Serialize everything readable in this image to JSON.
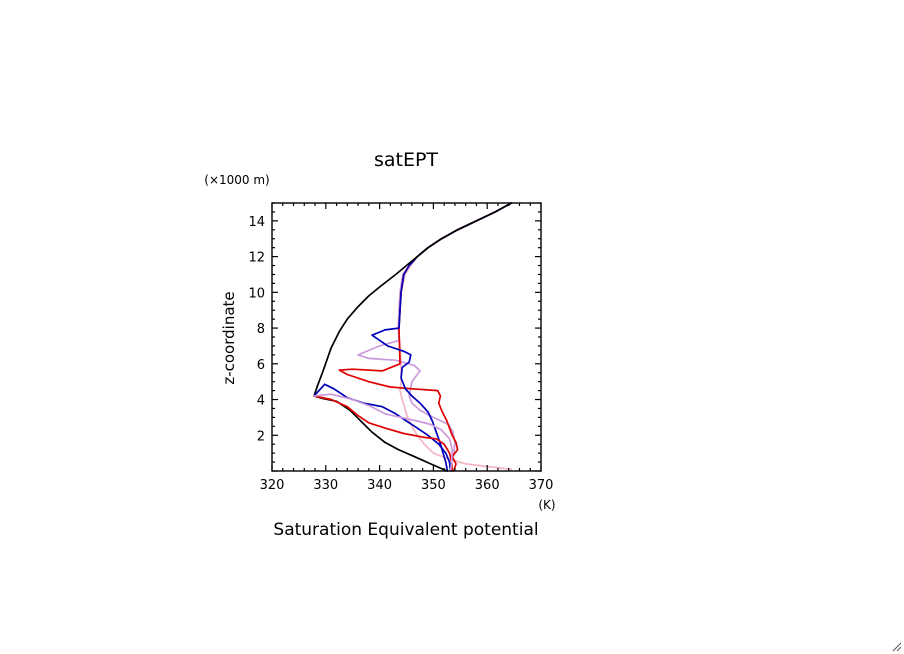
{
  "chart_data": {
    "type": "line",
    "title": "satEPT",
    "y_unit": "(×1000 m)",
    "ylabel": "z-coordinate",
    "x_unit": "(K)",
    "xlabel": "Saturation Equivalent potential",
    "xlim": [
      320,
      370
    ],
    "ylim": [
      0,
      15
    ],
    "xticks": [
      320,
      330,
      340,
      350,
      360,
      370
    ],
    "yticks": [
      2,
      4,
      6,
      8,
      10,
      12,
      14
    ],
    "grid": false,
    "series": [
      {
        "color": "#f4b6c2",
        "points": [
          [
            364.5,
            15
          ],
          [
            361.5,
            14.5
          ],
          [
            358,
            14
          ],
          [
            354.5,
            13.5
          ],
          [
            351.5,
            13
          ],
          [
            349,
            12.5
          ],
          [
            347,
            12
          ],
          [
            345.8,
            11.5
          ],
          [
            344.7,
            11
          ],
          [
            344,
            10
          ],
          [
            343.6,
            9
          ],
          [
            343.5,
            8
          ],
          [
            343.8,
            7
          ],
          [
            344,
            6
          ],
          [
            344,
            5
          ],
          [
            343.8,
            4.5
          ],
          [
            344.2,
            4
          ],
          [
            344.7,
            3.5
          ],
          [
            345.2,
            3
          ],
          [
            346,
            2.5
          ],
          [
            347,
            2
          ],
          [
            348.3,
            1.5
          ],
          [
            350,
            1
          ],
          [
            352.5,
            0.7
          ],
          [
            356,
            0.4
          ],
          [
            360,
            0.25
          ],
          [
            364.5,
            0.1
          ]
        ]
      },
      {
        "color": "#cc99dd",
        "points": [
          [
            364.5,
            15
          ],
          [
            361.5,
            14.5
          ],
          [
            358,
            14
          ],
          [
            354.5,
            13.5
          ],
          [
            351.5,
            13
          ],
          [
            349,
            12.5
          ],
          [
            347,
            12
          ],
          [
            345.5,
            11.5
          ],
          [
            344.3,
            11
          ],
          [
            343.8,
            10
          ],
          [
            343.6,
            9
          ],
          [
            343.5,
            8
          ],
          [
            343.6,
            7.3
          ],
          [
            340,
            7
          ],
          [
            336,
            6.5
          ],
          [
            338,
            6.3
          ],
          [
            343,
            6.2
          ],
          [
            346.5,
            5.9
          ],
          [
            347.5,
            5.6
          ],
          [
            346,
            5
          ],
          [
            345.5,
            4.2
          ],
          [
            346,
            3.8
          ],
          [
            347.5,
            3.4
          ],
          [
            350,
            3
          ],
          [
            352.8,
            2.6
          ],
          [
            353.6,
            2.2
          ],
          [
            354,
            1.6
          ],
          [
            353.8,
            1
          ],
          [
            353.4,
            0.5
          ],
          [
            353.2,
            0
          ]
        ]
      },
      {
        "color": "#e00000",
        "points": [
          [
            364.5,
            15
          ],
          [
            361.5,
            14.5
          ],
          [
            358,
            14
          ],
          [
            354.5,
            13.5
          ],
          [
            351.5,
            13
          ],
          [
            349,
            12.5
          ],
          [
            347,
            12
          ],
          [
            345.5,
            11.5
          ],
          [
            344.5,
            11
          ],
          [
            344,
            10
          ],
          [
            343.8,
            9
          ],
          [
            343.6,
            8
          ],
          [
            343.7,
            7
          ],
          [
            343.8,
            6
          ],
          [
            340.5,
            5.6
          ],
          [
            335,
            5.7
          ],
          [
            332.5,
            5.65
          ],
          [
            334,
            5.4
          ],
          [
            338,
            5
          ],
          [
            342,
            4.7
          ],
          [
            346,
            4.6
          ],
          [
            350.8,
            4.5
          ],
          [
            351.3,
            4.2
          ],
          [
            351,
            3.8
          ],
          [
            351.5,
            3.4
          ],
          [
            352.5,
            2.8
          ],
          [
            353,
            2.4
          ],
          [
            353.5,
            2
          ],
          [
            354.2,
            1.6
          ],
          [
            354.5,
            1.2
          ],
          [
            353.5,
            0.8
          ],
          [
            354.2,
            0.4
          ],
          [
            353.8,
            0
          ]
        ]
      },
      {
        "color": "#0000bb",
        "points": [
          [
            364.5,
            15
          ],
          [
            361.5,
            14.5
          ],
          [
            358,
            14
          ],
          [
            354.5,
            13.5
          ],
          [
            351.5,
            13
          ],
          [
            349,
            12.5
          ],
          [
            347,
            12
          ],
          [
            345.5,
            11.5
          ],
          [
            344.5,
            11
          ],
          [
            344,
            10
          ],
          [
            343.8,
            9
          ],
          [
            343.6,
            8
          ],
          [
            341,
            7.9
          ],
          [
            338.6,
            7.6
          ],
          [
            341.5,
            7
          ],
          [
            344.5,
            6.7
          ],
          [
            345.8,
            6.5
          ],
          [
            345.5,
            6.1
          ],
          [
            344.2,
            5.8
          ],
          [
            344,
            5.2
          ],
          [
            344.8,
            4.6
          ],
          [
            346,
            4.2
          ],
          [
            347.5,
            3.8
          ],
          [
            349,
            3.3
          ],
          [
            349.8,
            2.8
          ],
          [
            350.5,
            2.2
          ],
          [
            351.2,
            1.6
          ],
          [
            351.8,
            1
          ],
          [
            352.3,
            0.5
          ],
          [
            352.6,
            0
          ]
        ]
      },
      {
        "color": "#000000",
        "points": [
          [
            364.5,
            15
          ],
          [
            361.5,
            14.5
          ],
          [
            358,
            14
          ],
          [
            354.5,
            13.5
          ],
          [
            351.5,
            13
          ],
          [
            349,
            12.5
          ],
          [
            347,
            12
          ],
          [
            345,
            11.5
          ],
          [
            343,
            11
          ],
          [
            340,
            10.3
          ],
          [
            338,
            9.8
          ],
          [
            336,
            9.2
          ],
          [
            334,
            8.5
          ],
          [
            332.5,
            7.8
          ],
          [
            331,
            6.9
          ],
          [
            329.5,
            5.6
          ],
          [
            328.5,
            4.8
          ],
          [
            327.8,
            4.2
          ],
          [
            329.5,
            4.05
          ],
          [
            332,
            3.9
          ],
          [
            334.5,
            3.4
          ],
          [
            336.5,
            2.8
          ],
          [
            338.5,
            2.2
          ],
          [
            341,
            1.6
          ],
          [
            343.5,
            1.2
          ],
          [
            346.5,
            0.8
          ],
          [
            349.5,
            0.4
          ],
          [
            352.5,
            0
          ]
        ]
      },
      {
        "color": "#0000bb",
        "points": [
          [
            327.8,
            4.2
          ],
          [
            329.8,
            4.85
          ],
          [
            331.5,
            4.6
          ],
          [
            334,
            4.1
          ],
          [
            337,
            3.8
          ],
          [
            340.5,
            3.6
          ],
          [
            343,
            3.2
          ],
          [
            345,
            2.8
          ],
          [
            347,
            2.4
          ],
          [
            349,
            2
          ],
          [
            351,
            1.5
          ],
          [
            352.3,
            1
          ],
          [
            353,
            0.5
          ],
          [
            353.2,
            0
          ]
        ]
      },
      {
        "color": "#e00000",
        "points": [
          [
            327.8,
            4.2
          ],
          [
            331,
            4.0
          ],
          [
            334,
            3.6
          ],
          [
            336,
            3.1
          ],
          [
            338,
            2.7
          ],
          [
            341,
            2.4
          ],
          [
            344.5,
            2.1
          ],
          [
            348,
            1.9
          ],
          [
            350.5,
            1.8
          ],
          [
            352,
            1.5
          ],
          [
            353,
            1
          ],
          [
            353.4,
            0.5
          ],
          [
            353.5,
            0
          ]
        ]
      },
      {
        "color": "#cc99dd",
        "points": [
          [
            327.8,
            4.2
          ],
          [
            331,
            4.3
          ],
          [
            335,
            4.0
          ],
          [
            338.5,
            3.6
          ],
          [
            341,
            3.2
          ],
          [
            344,
            3.0
          ],
          [
            347,
            2.8
          ],
          [
            349.5,
            2.6
          ],
          [
            351.5,
            2.3
          ],
          [
            353,
            1.8
          ],
          [
            353.5,
            1.2
          ],
          [
            353.4,
            0.5
          ],
          [
            353.2,
            0
          ]
        ]
      }
    ]
  }
}
